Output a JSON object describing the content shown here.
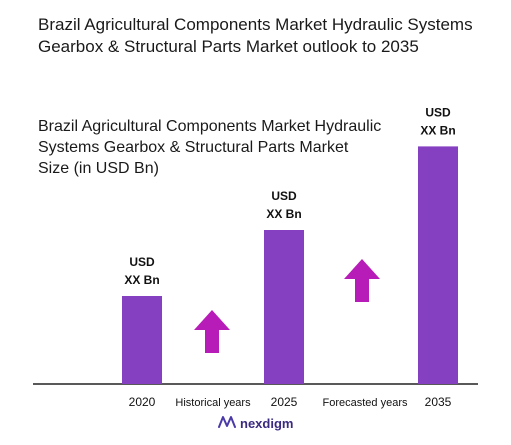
{
  "page_title": "Brazil Agricultural Components Market Hydraulic Systems Gearbox & Structural Parts Market outlook to 2035",
  "brand": {
    "name": "nexdigm",
    "icon": "nexdigm-logo-icon"
  },
  "colors": {
    "bar": "#8540c2",
    "arrow": "#b81cb8",
    "axis": "#222222"
  },
  "chart_data": {
    "type": "bar",
    "title": "Brazil Agricultural Components Market Hydraulic Systems Gearbox & Structural Parts Market Size (in USD Bn)",
    "xlabel": "",
    "ylabel": "",
    "grid": false,
    "categories": [
      "2020",
      "2025",
      "2035"
    ],
    "values": [
      1.0,
      1.75,
      2.7
    ],
    "value_labels": [
      [
        "USD",
        "XX Bn"
      ],
      [
        "USD",
        "XX Bn"
      ],
      [
        "USD",
        "XX Bn"
      ]
    ],
    "ylim": [
      0,
      3.0
    ],
    "period_labels": [
      "Historical years",
      "Forecasted years"
    ],
    "trend_arrows": [
      "up-arrow-icon",
      "up-arrow-icon"
    ]
  }
}
